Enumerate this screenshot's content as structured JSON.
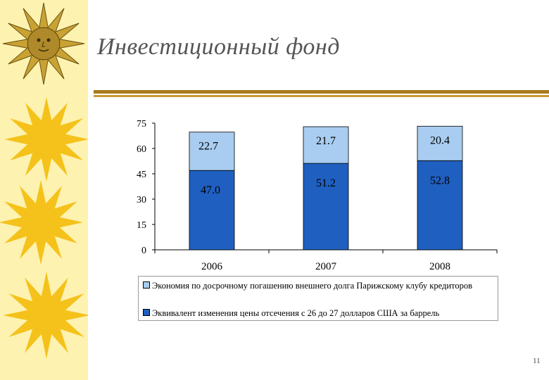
{
  "slide": {
    "title": "Инвестиционный фонд",
    "page_number": "11"
  },
  "colors": {
    "band": "#fdf2b0",
    "sun": "#f5c21b",
    "rule": "#a87a1e",
    "series_dark": "#1f5fc0",
    "series_light": "#a9cdf0"
  },
  "icons": [
    "sun-face-icon",
    "sun-icon"
  ],
  "chart_data": {
    "type": "bar",
    "stacked": true,
    "categories": [
      "2006",
      "2007",
      "2008"
    ],
    "series": [
      {
        "name": "Эквивалент изменения цены отсечения с 26 до 27 долларов США за баррель",
        "values": [
          47.0,
          51.2,
          52.8
        ],
        "labels": [
          "47.0",
          "51.2",
          "52.8"
        ],
        "color": "#1f5fc0"
      },
      {
        "name": "Экономия по досрочному погашению внешнего долга Парижскому клубу кредиторов",
        "values": [
          22.7,
          21.7,
          20.4
        ],
        "labels": [
          "22.7",
          "21.7",
          "20.4"
        ],
        "color": "#a9cdf0"
      }
    ],
    "yticks": [
      "0",
      "15",
      "30",
      "45",
      "60",
      "75"
    ],
    "ylim": [
      0,
      75
    ],
    "grid": false,
    "legend": "bottom",
    "title": "",
    "xlabel": "",
    "ylabel": ""
  }
}
